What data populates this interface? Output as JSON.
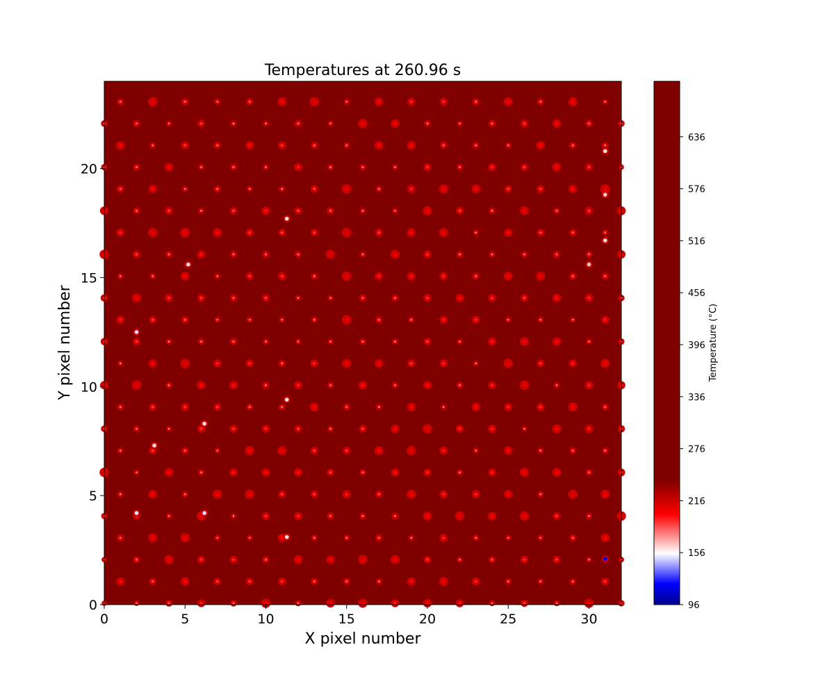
{
  "chart_data": {
    "type": "heatmap",
    "title": "Temperatures at 260.96 s",
    "xlabel": "X pixel number",
    "ylabel": "Y pixel number",
    "xlim": [
      0,
      32
    ],
    "ylim": [
      0,
      24
    ],
    "x_ticks": [
      {
        "value": 0,
        "label": "0"
      },
      {
        "value": 5,
        "label": "5"
      },
      {
        "value": 10,
        "label": "10"
      },
      {
        "value": 15,
        "label": "15"
      },
      {
        "value": 20,
        "label": "20"
      },
      {
        "value": 25,
        "label": "25"
      },
      {
        "value": 30,
        "label": "30"
      }
    ],
    "y_ticks": [
      {
        "value": 0,
        "label": "0"
      },
      {
        "value": 5,
        "label": "5"
      },
      {
        "value": 10,
        "label": "10"
      },
      {
        "value": 15,
        "label": "15"
      },
      {
        "value": 20,
        "label": "20"
      }
    ],
    "grid": false,
    "background_temperature": 700,
    "colorbar": {
      "label": "Temperature (°C)",
      "min": 96,
      "max": 700,
      "ticks": [
        {
          "value": 96,
          "label": "96"
        },
        {
          "value": 156,
          "label": "156"
        },
        {
          "value": 216,
          "label": "216"
        },
        {
          "value": 276,
          "label": "276"
        },
        {
          "value": 336,
          "label": "336"
        },
        {
          "value": 396,
          "label": "396"
        },
        {
          "value": 456,
          "label": "456"
        },
        {
          "value": 516,
          "label": "516"
        },
        {
          "value": 576,
          "label": "576"
        },
        {
          "value": 636,
          "label": "636"
        }
      ],
      "colormap": [
        {
          "value": 96,
          "color": "#00008b"
        },
        {
          "value": 120,
          "color": "#0000ff"
        },
        {
          "value": 155,
          "color": "#ffffff"
        },
        {
          "value": 200,
          "color": "#ff0000"
        },
        {
          "value": 240,
          "color": "#800000"
        },
        {
          "value": 700,
          "color": "#800000"
        }
      ]
    },
    "hot_spots": {
      "columns": 32,
      "rows": 24,
      "highlight_points": [
        {
          "x": 2,
          "y": 12.5,
          "temperature": 150
        },
        {
          "x": 2,
          "y": 4.2,
          "temperature": 150
        },
        {
          "x": 6.2,
          "y": 4.2,
          "temperature": 150
        },
        {
          "x": 6.2,
          "y": 8.3,
          "temperature": 160
        },
        {
          "x": 3.1,
          "y": 7.3,
          "temperature": 160
        },
        {
          "x": 11.3,
          "y": 17.7,
          "temperature": 160
        },
        {
          "x": 11.3,
          "y": 9.4,
          "temperature": 160
        },
        {
          "x": 11.3,
          "y": 3.1,
          "temperature": 160
        },
        {
          "x": 5.2,
          "y": 15.6,
          "temperature": 160
        },
        {
          "x": 31,
          "y": 2.1,
          "temperature": 115
        },
        {
          "x": 31,
          "y": 20.8,
          "temperature": 160
        },
        {
          "x": 31,
          "y": 16.7,
          "temperature": 160
        },
        {
          "x": 30,
          "y": 15.6,
          "temperature": 165
        },
        {
          "x": 31,
          "y": 18.8,
          "temperature": 165
        }
      ]
    }
  }
}
